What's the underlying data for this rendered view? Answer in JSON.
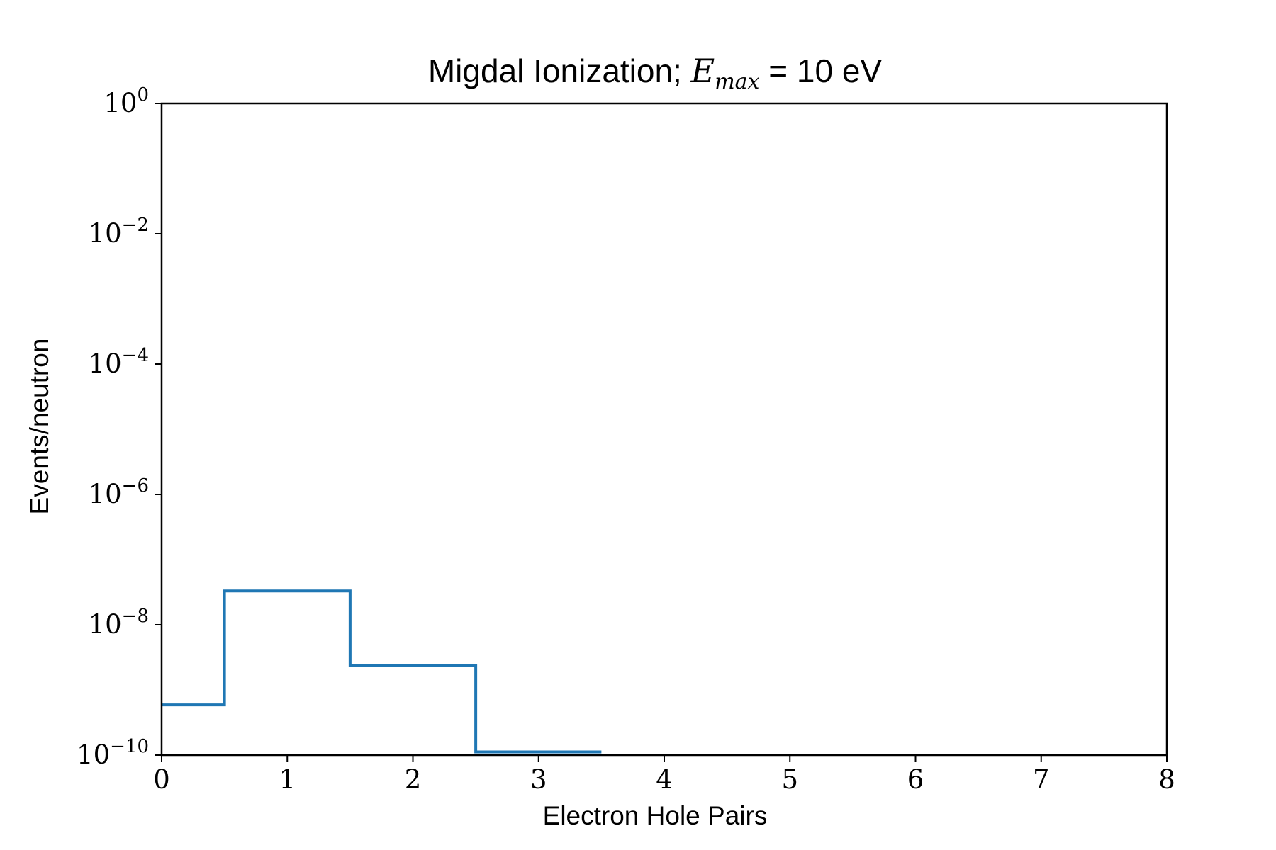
{
  "chart_data": {
    "type": "line",
    "drawstyle": "steps-mid",
    "title": {
      "prefix": "Migdal Ionization; ",
      "var": "E",
      "subscript": "max",
      "suffix": " = 10 eV"
    },
    "xlabel": "Electron Hole Pairs",
    "ylabel": "Events/neutron",
    "xlim": [
      0,
      8
    ],
    "ylim": [
      1e-10,
      1
    ],
    "yscale": "log",
    "grid": false,
    "x_ticks": [
      0,
      1,
      2,
      3,
      4,
      5,
      6,
      7,
      8
    ],
    "y_ticks": [
      {
        "base": "10",
        "exp": "0",
        "value": 1
      },
      {
        "base": "10",
        "exp": "−2",
        "value": 0.01
      },
      {
        "base": "10",
        "exp": "−4",
        "value": 0.0001
      },
      {
        "base": "10",
        "exp": "−6",
        "value": 1e-06
      },
      {
        "base": "10",
        "exp": "−8",
        "value": 1e-08
      },
      {
        "base": "10",
        "exp": "−10",
        "value": 1e-10
      }
    ],
    "series": [
      {
        "color": "#1f77b4",
        "x": [
          0,
          1,
          2,
          3
        ],
        "y": [
          5.9e-10,
          3.3e-08,
          2.4e-09,
          1.12e-10
        ]
      }
    ]
  }
}
